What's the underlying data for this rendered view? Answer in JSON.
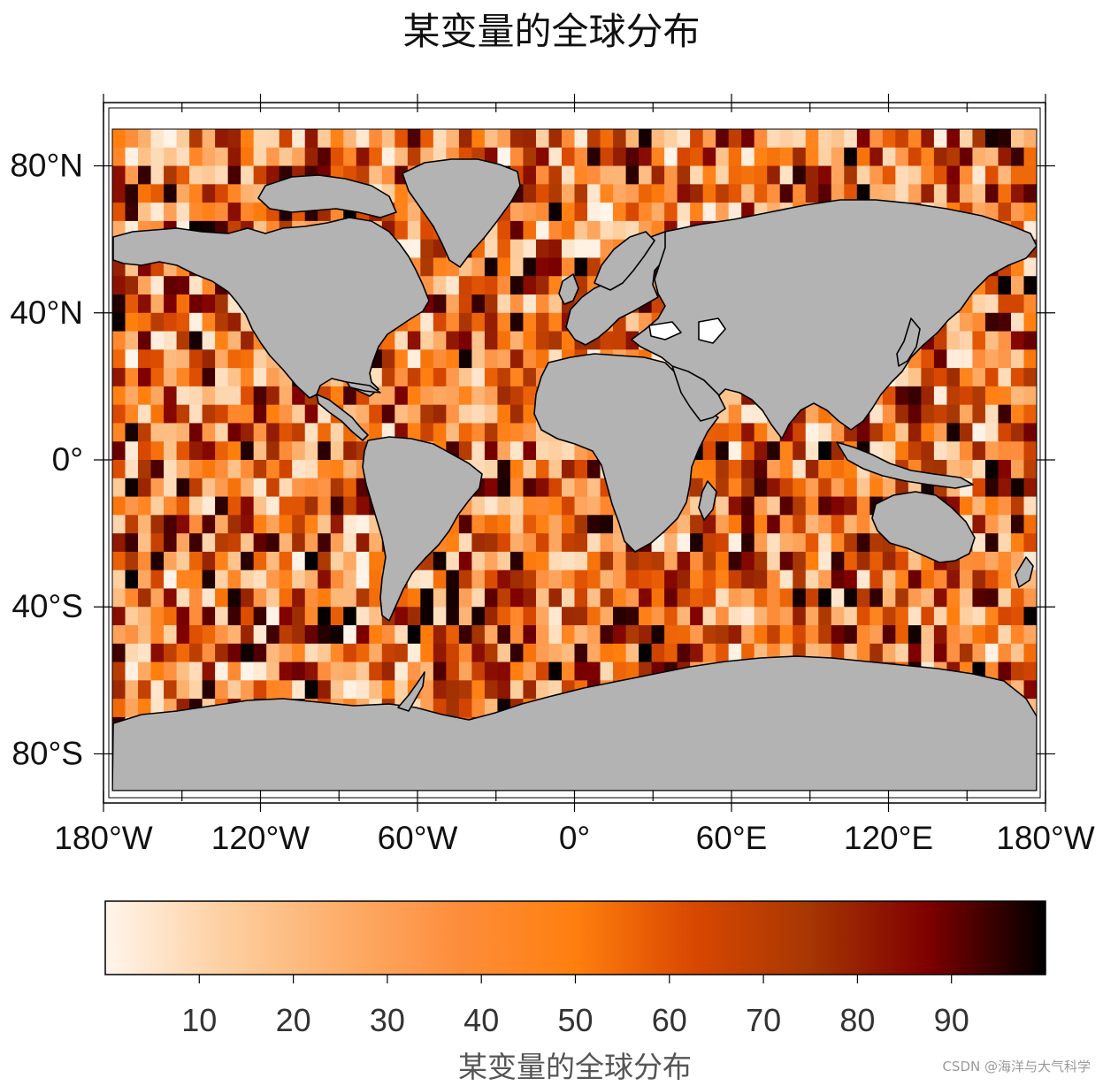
{
  "map": {
    "title": "某变量的全球分布",
    "projection": "equidistant-cylindrical",
    "lon_range": [
      -180,
      180
    ],
    "lat_range": [
      -90,
      90
    ],
    "lat_ticks": [
      {
        "value": 80,
        "label": "80°N"
      },
      {
        "value": 40,
        "label": "40°N"
      },
      {
        "value": 0,
        "label": "0°"
      },
      {
        "value": -40,
        "label": "40°S"
      },
      {
        "value": -80,
        "label": "80°S"
      }
    ],
    "lon_ticks": [
      {
        "value": -180,
        "label": "180°W"
      },
      {
        "value": -120,
        "label": "120°W"
      },
      {
        "value": -60,
        "label": "60°W"
      },
      {
        "value": 0,
        "label": "0°"
      },
      {
        "value": 60,
        "label": "60°E"
      },
      {
        "value": 120,
        "label": "120°E"
      },
      {
        "value": 180,
        "label": "180°W"
      }
    ],
    "grid_resolution_deg": 5,
    "land_color": "#b3b3b3",
    "coast_color": "#000000",
    "field": "random values 0-100 on a 5° grid over the ocean",
    "value_range": [
      0,
      100
    ]
  },
  "colorbar": {
    "label": "某变量的全球分布",
    "ticks": [
      "10",
      "20",
      "30",
      "40",
      "50",
      "60",
      "70",
      "80",
      "90"
    ],
    "tick_values": [
      10,
      20,
      30,
      40,
      50,
      60,
      70,
      80,
      90
    ],
    "range": [
      0,
      100
    ],
    "colormap": [
      "#fff5eb",
      "#fdd0a2",
      "#fdae6b",
      "#fd8d3c",
      "#ff7f0e",
      "#d94801",
      "#a63603",
      "#7f0000",
      "#000000"
    ]
  },
  "watermark": "CSDN @海洋与大气科学"
}
